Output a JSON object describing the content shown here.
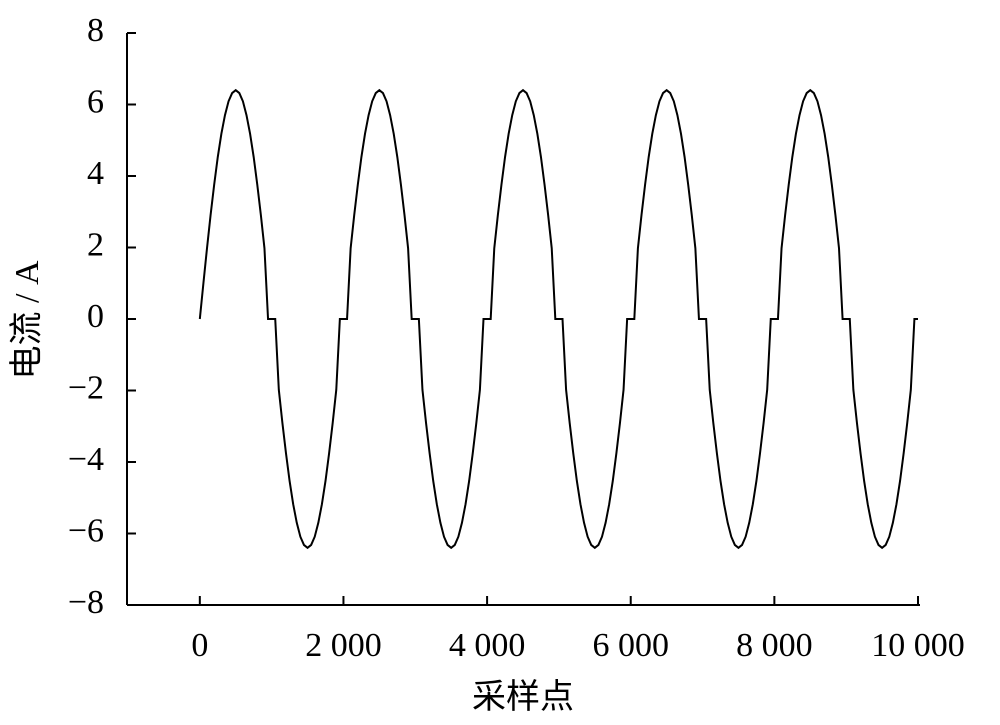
{
  "chart_data": {
    "type": "line",
    "xlabel": "采样点",
    "ylabel": "电流 / A",
    "xlim": [
      -1000,
      10000
    ],
    "ylim": [
      -8,
      8
    ],
    "xticks": [
      0,
      {
        "value": 2000,
        "label": "2 000"
      },
      {
        "value": 4000,
        "label": "4 000"
      },
      {
        "value": 6000,
        "label": "6 000"
      },
      {
        "value": 8000,
        "label": "8 000"
      },
      {
        "value": 10000,
        "label": "10 000"
      }
    ],
    "yticks": [
      {
        "value": -8,
        "label": "−8"
      },
      {
        "value": -6,
        "label": "−6"
      },
      {
        "value": -4,
        "label": "−4"
      },
      {
        "value": -2,
        "label": "−2"
      },
      0,
      2,
      4,
      6,
      8
    ],
    "grid": false,
    "series": [
      {
        "color": "#000000",
        "x": [
          0,
          50,
          100,
          150,
          200,
          250,
          300,
          350,
          400,
          450,
          500,
          550,
          600,
          650,
          700,
          750,
          800,
          850,
          900,
          950,
          1000,
          1050,
          1100,
          1150,
          1200,
          1250,
          1300,
          1350,
          1400,
          1450,
          1500,
          1550,
          1600,
          1650,
          1700,
          1750,
          1800,
          1850,
          1900,
          1950,
          2000,
          2050,
          2100,
          2150,
          2200,
          2250,
          2300,
          2350,
          2400,
          2450,
          2500,
          2550,
          2600,
          2650,
          2700,
          2750,
          2800,
          2850,
          2900,
          2950,
          3000,
          3050,
          3100,
          3150,
          3200,
          3250,
          3300,
          3350,
          3400,
          3450,
          3500,
          3550,
          3600,
          3650,
          3700,
          3750,
          3800,
          3850,
          3900,
          3950,
          4000,
          4050,
          4100,
          4150,
          4200,
          4250,
          4300,
          4350,
          4400,
          4450,
          4500,
          4550,
          4600,
          4650,
          4700,
          4750,
          4800,
          4850,
          4900,
          4950,
          5000,
          5050,
          5100,
          5150,
          5200,
          5250,
          5300,
          5350,
          5400,
          5450,
          5500,
          5550,
          5600,
          5650,
          5700,
          5750,
          5800,
          5850,
          5900,
          5950,
          6000,
          6050,
          6100,
          6150,
          6200,
          6250,
          6300,
          6350,
          6400,
          6450,
          6500,
          6550,
          6600,
          6650,
          6700,
          6750,
          6800,
          6850,
          6900,
          6950,
          7000,
          7050,
          7100,
          7150,
          7200,
          7250,
          7300,
          7350,
          7400,
          7450,
          7500,
          7550,
          7600,
          7650,
          7700,
          7750,
          7800,
          7850,
          7900,
          7950,
          8000,
          8050,
          8100,
          8150,
          8200,
          8250,
          8300,
          8350,
          8400,
          8450,
          8500,
          8550,
          8600,
          8650,
          8700,
          8750,
          8800,
          8850,
          8900,
          8950,
          9000,
          9050,
          9100,
          9150,
          9200,
          9250,
          9300,
          9350,
          9400,
          9450,
          9500,
          9550,
          9600,
          9650,
          9700,
          9750,
          9800,
          9850,
          9900,
          9950,
          10000
        ],
        "values": [
          0,
          1.0,
          1.98,
          2.91,
          3.76,
          4.53,
          5.18,
          5.7,
          6.09,
          6.32,
          6.4,
          6.32,
          6.09,
          5.7,
          5.18,
          4.53,
          3.76,
          2.91,
          1.98,
          0,
          0,
          0,
          -1.98,
          -2.91,
          -3.76,
          -4.53,
          -5.18,
          -5.7,
          -6.09,
          -6.32,
          -6.4,
          -6.32,
          -6.09,
          -5.7,
          -5.18,
          -4.53,
          -3.76,
          -2.91,
          -1.98,
          0,
          0,
          0,
          1.98,
          2.91,
          3.76,
          4.53,
          5.18,
          5.7,
          6.09,
          6.32,
          6.4,
          6.32,
          6.09,
          5.7,
          5.18,
          4.53,
          3.76,
          2.91,
          1.98,
          0,
          0,
          0,
          -1.98,
          -2.91,
          -3.76,
          -4.53,
          -5.18,
          -5.7,
          -6.09,
          -6.32,
          -6.4,
          -6.32,
          -6.09,
          -5.7,
          -5.18,
          -4.53,
          -3.76,
          -2.91,
          -1.98,
          0,
          0,
          0,
          1.98,
          2.91,
          3.76,
          4.53,
          5.18,
          5.7,
          6.09,
          6.32,
          6.4,
          6.32,
          6.09,
          5.7,
          5.18,
          4.53,
          3.76,
          2.91,
          1.98,
          0,
          0,
          0,
          -1.98,
          -2.91,
          -3.76,
          -4.53,
          -5.18,
          -5.7,
          -6.09,
          -6.32,
          -6.4,
          -6.32,
          -6.09,
          -5.7,
          -5.18,
          -4.53,
          -3.76,
          -2.91,
          -1.98,
          0,
          0,
          0,
          1.98,
          2.91,
          3.76,
          4.53,
          5.18,
          5.7,
          6.09,
          6.32,
          6.4,
          6.32,
          6.09,
          5.7,
          5.18,
          4.53,
          3.76,
          2.91,
          1.98,
          0,
          0,
          0,
          -1.98,
          -2.91,
          -3.76,
          -4.53,
          -5.18,
          -5.7,
          -6.09,
          -6.32,
          -6.4,
          -6.32,
          -6.09,
          -5.7,
          -5.18,
          -4.53,
          -3.76,
          -2.91,
          -1.98,
          0,
          0,
          0,
          1.98,
          2.91,
          3.76,
          4.53,
          5.18,
          5.7,
          6.09,
          6.32,
          6.4,
          6.32,
          6.09,
          5.7,
          5.18,
          4.53,
          3.76,
          2.91,
          1.98,
          0,
          0,
          0,
          -1.98,
          -2.91,
          -3.76,
          -4.53,
          -5.18,
          -5.7,
          -6.09,
          -6.32,
          -6.4,
          -6.32,
          -6.09,
          -5.7,
          -5.18,
          -4.53,
          -3.76,
          -2.91,
          -1.98,
          0,
          0
        ]
      }
    ]
  }
}
